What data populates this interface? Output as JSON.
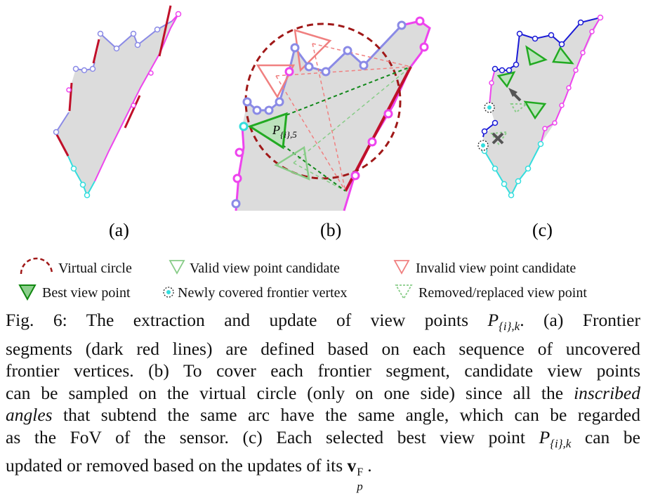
{
  "panels": {
    "a_label": "(a)",
    "b_label": "(b)",
    "c_label": "(c)",
    "b_point_label": "P",
    "b_point_sub": "{i},5"
  },
  "legend": {
    "virtual_circle": "Virtual circle",
    "valid_candidate": "Valid view point candidate",
    "invalid_candidate": "Invalid view point candidate",
    "best_view_point": "Best view point",
    "newly_covered": "Newly covered frontier vertex",
    "removed_replaced": "Removed/replaced view point"
  },
  "caption": {
    "l1_a": "Fig. 6: The extraction and update of view points ",
    "l1_p": "P",
    "l1_sub": "{i},k",
    "l1_b": ". (a) Frontier",
    "l2": "segments (dark red lines) are defined based on each sequence of uncovered",
    "l3": "frontier vertices. (b) To cover each frontier segment, candidate view points",
    "l4_a": "can be sampled on the virtual circle (only on one side) since all the ",
    "l4_i": "inscribed",
    "l5_i": "angles",
    "l5_b": " that subtend the same arc have the same angle, which can be regarded",
    "l6": "as the FoV of the sensor. (c) Each selected best view point ",
    "l6_p": "P",
    "l6_sub": "{i},k",
    "l6_b": " can be",
    "l7_a": "updated or removed based on the updates of its ",
    "l7_v": "v",
    "l7_sup": "F",
    "l7_sub": "p",
    "l7_b": "."
  },
  "colors": {
    "gray_fill": "#dcdcdc",
    "blue": "#8a8ae6",
    "dark_blue": "#1a1ad6",
    "magenta": "#ee44ee",
    "cyan": "#33dddd",
    "dark_red": "#c0102a",
    "green": "#22aa22",
    "light_green": "#88cc88",
    "salmon": "#f08080"
  }
}
